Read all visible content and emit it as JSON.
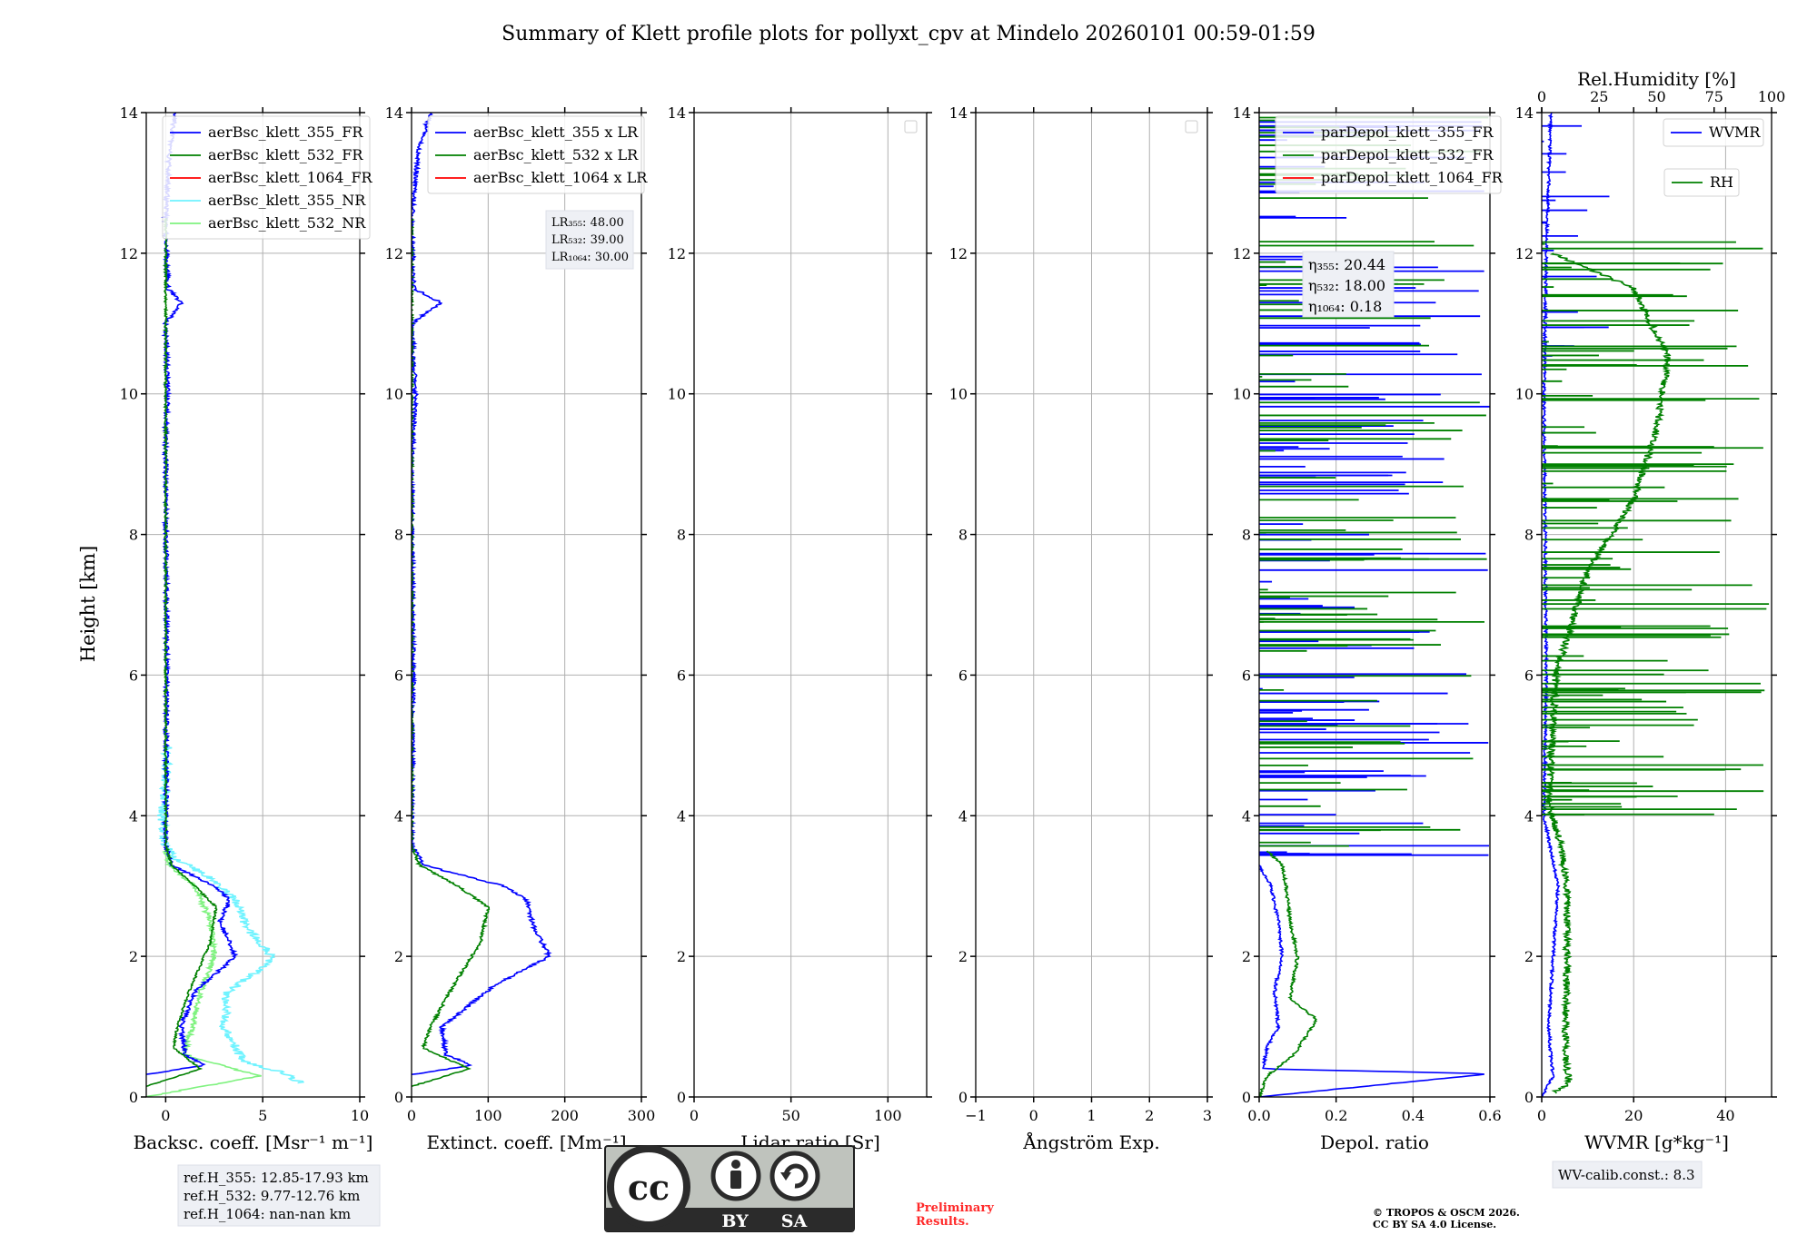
{
  "figure": {
    "title": "Summary of Klett profile plots for pollyxt_cpv at Mindelo 20260101 00:59-01:59",
    "ylabel": "Height [km]",
    "ref_box": [
      "ref.H_355: 12.85-17.93 km",
      "ref.H_532: 9.77-12.76 km",
      "ref.H_1064: nan-nan km"
    ],
    "wv_calib": "WV-calib.const.: 8.3",
    "preliminary": [
      "Preliminary",
      "Results."
    ],
    "copyright": [
      "© TROPOS & OSCM 2026.",
      "CC BY SA 4.0 License."
    ],
    "license_badge": {
      "left": "BY",
      "right": "SA",
      "logo": "cc"
    }
  },
  "colors": {
    "blue": "#0000ff",
    "green": "#008000",
    "red": "#ff0000",
    "cyan": "#6ff3ff",
    "lightgreen": "#7ff27f",
    "grid": "#b0b0b0",
    "red_text": "#ff2a2a",
    "box_bg": "#eef0f5"
  },
  "chart_data": [
    {
      "id": "bsc",
      "type": "line",
      "xlabel": "Backsc. coeff. [Msr⁻¹ m⁻¹]",
      "xlim": [
        -1,
        10
      ],
      "ylim": [
        0,
        14
      ],
      "xticks": [
        0,
        5,
        10
      ],
      "yticks": [
        0,
        2,
        4,
        6,
        8,
        10,
        12,
        14
      ],
      "legend": [
        "aerBsc_klett_355_FR",
        "aerBsc_klett_532_FR",
        "aerBsc_klett_1064_FR",
        "aerBsc_klett_355_NR",
        "aerBsc_klett_532_NR"
      ],
      "series": [
        {
          "name": "aerBsc_klett_355_NR",
          "color": "cyan",
          "noise": 0.25,
          "points": [
            [
              7.0,
              0.2
            ],
            [
              6.0,
              0.35
            ],
            [
              4.0,
              0.5
            ],
            [
              3.0,
              1.0
            ],
            [
              3.2,
              1.5
            ],
            [
              4.8,
              1.8
            ],
            [
              5.5,
              2.0
            ],
            [
              4.2,
              2.4
            ],
            [
              3.6,
              2.8
            ],
            [
              2.4,
              3.1
            ],
            [
              0.5,
              3.4
            ],
            [
              0.0,
              3.6
            ],
            [
              -0.2,
              4.0
            ],
            [
              0.0,
              4.5
            ],
            [
              0.1,
              5.0
            ]
          ]
        },
        {
          "name": "aerBsc_klett_532_NR",
          "color": "lightgreen",
          "noise": 0.15,
          "points": [
            [
              -1.0,
              0.0
            ],
            [
              4.8,
              0.3
            ],
            [
              3.5,
              0.4
            ],
            [
              1.0,
              0.6
            ],
            [
              1.8,
              1.5
            ],
            [
              2.5,
              2.0
            ],
            [
              2.3,
              2.5
            ],
            [
              1.5,
              3.0
            ],
            [
              0.2,
              3.3
            ],
            [
              0.0,
              3.5
            ]
          ]
        },
        {
          "name": "aerBsc_klett_355_FR",
          "color": "blue",
          "noise": 0.12,
          "points": [
            [
              -1.0,
              0.32
            ],
            [
              2.0,
              0.45
            ],
            [
              1.0,
              0.6
            ],
            [
              0.8,
              1.0
            ],
            [
              1.5,
              1.5
            ],
            [
              3.6,
              2.0
            ],
            [
              2.8,
              2.5
            ],
            [
              3.3,
              2.8
            ],
            [
              2.5,
              3.0
            ],
            [
              0.3,
              3.3
            ],
            [
              0.0,
              3.6
            ],
            [
              0.05,
              6.0
            ],
            [
              0.0,
              9.5
            ],
            [
              0.1,
              10.0
            ],
            [
              0.0,
              11.0
            ],
            [
              0.8,
              11.3
            ],
            [
              0.1,
              11.5
            ],
            [
              0.0,
              12.5
            ],
            [
              0.2,
              13.5
            ],
            [
              0.5,
              14.0
            ]
          ]
        },
        {
          "name": "aerBsc_klett_532_FR",
          "color": "green",
          "noise": 0.06,
          "points": [
            [
              -1.0,
              0.15
            ],
            [
              1.8,
              0.4
            ],
            [
              0.4,
              0.7
            ],
            [
              0.6,
              1.0
            ],
            [
              1.2,
              1.5
            ],
            [
              2.3,
              2.2
            ],
            [
              2.6,
              2.7
            ],
            [
              1.5,
              3.0
            ],
            [
              0.3,
              3.3
            ],
            [
              0.0,
              3.6
            ],
            [
              0.0,
              12.5
            ]
          ]
        }
      ]
    },
    {
      "id": "ext",
      "type": "line",
      "xlabel": "Extinct. coeff. [Mm⁻¹]",
      "xlim": [
        0,
        300
      ],
      "ylim": [
        0,
        14
      ],
      "xticks": [
        0,
        100,
        200,
        300
      ],
      "yticks": [
        0,
        2,
        4,
        6,
        8,
        10,
        12,
        14
      ],
      "legend": [
        "aerBsc_klett_355 x LR",
        "aerBsc_klett_532 x LR",
        "aerBsc_klett_1064 x LR"
      ],
      "lr_box": [
        "LR₃₅₅: 48.00",
        "LR₅₃₂: 39.00",
        "LR₁₀₆₄: 30.00"
      ],
      "series": [
        {
          "name": "aerBsc_klett_355 x LR",
          "color": "blue",
          "noise": 3,
          "points": [
            [
              0,
              0.32
            ],
            [
              80,
              0.45
            ],
            [
              45,
              0.6
            ],
            [
              40,
              1.0
            ],
            [
              110,
              1.6
            ],
            [
              180,
              2.0
            ],
            [
              160,
              2.4
            ],
            [
              150,
              2.8
            ],
            [
              120,
              3.0
            ],
            [
              15,
              3.3
            ],
            [
              0,
              3.6
            ],
            [
              2,
              6.0
            ],
            [
              0,
              9.0
            ],
            [
              5,
              10.0
            ],
            [
              0,
              11.0
            ],
            [
              38,
              11.3
            ],
            [
              3,
              11.5
            ],
            [
              0,
              12.5
            ],
            [
              10,
              13.5
            ],
            [
              25,
              14.0
            ]
          ]
        },
        {
          "name": "aerBsc_klett_532 x LR",
          "color": "green",
          "noise": 2,
          "points": [
            [
              0,
              0.15
            ],
            [
              75,
              0.4
            ],
            [
              15,
              0.7
            ],
            [
              25,
              1.0
            ],
            [
              50,
              1.5
            ],
            [
              90,
              2.2
            ],
            [
              100,
              2.7
            ],
            [
              60,
              3.0
            ],
            [
              10,
              3.3
            ],
            [
              0,
              3.6
            ],
            [
              0,
              12.5
            ]
          ]
        }
      ]
    },
    {
      "id": "lr",
      "type": "line",
      "xlabel": "Lidar ratio [Sr]",
      "xlim": [
        0,
        120
      ],
      "ylim": [
        0,
        14
      ],
      "xticks": [
        0,
        50,
        100
      ],
      "yticks": [
        0,
        2,
        4,
        6,
        8,
        10,
        12,
        14
      ],
      "series": []
    },
    {
      "id": "ang",
      "type": "line",
      "xlabel": "Ångström Exp.",
      "xlim": [
        -1,
        3
      ],
      "ylim": [
        0,
        14
      ],
      "xticks": [
        -1,
        0,
        1,
        2,
        3
      ],
      "yticks": [
        0,
        2,
        4,
        6,
        8,
        10,
        12,
        14
      ],
      "series": []
    },
    {
      "id": "depol",
      "type": "line",
      "xlabel": "Depol. ratio",
      "xlim": [
        0,
        0.6
      ],
      "ylim": [
        0,
        14
      ],
      "xticks": [
        0.0,
        0.2,
        0.4,
        0.6
      ],
      "yticks": [
        0,
        2,
        4,
        6,
        8,
        10,
        12,
        14
      ],
      "legend": [
        "parDepol_klett_355_FR",
        "parDepol_klett_532_FR",
        "parDepol_klett_1064_FR"
      ],
      "eta_box": [
        "η₃₅₅: 20.44",
        "η₅₃₂: 18.00",
        "η₁₀₆₄: 0.18"
      ],
      "series": [
        {
          "name": "parDepol_klett_355_FR",
          "color": "blue",
          "noise": 0.004,
          "points": [
            [
              0.0,
              0.0
            ],
            [
              0.6,
              0.33
            ],
            [
              0.01,
              0.4
            ],
            [
              0.02,
              0.7
            ],
            [
              0.05,
              1.0
            ],
            [
              0.04,
              1.5
            ],
            [
              0.06,
              2.0
            ],
            [
              0.05,
              2.5
            ],
            [
              0.03,
              3.0
            ],
            [
              0.0,
              3.3
            ]
          ],
          "spike_range": [
            3.4,
            14.0
          ],
          "spike_count": 110,
          "spike_max": 0.6
        },
        {
          "name": "parDepol_klett_532_FR",
          "color": "green",
          "noise": 0.004,
          "points": [
            [
              0.0,
              0.0
            ],
            [
              0.02,
              0.3
            ],
            [
              0.09,
              0.6
            ],
            [
              0.15,
              1.1
            ],
            [
              0.08,
              1.4
            ],
            [
              0.1,
              2.0
            ],
            [
              0.08,
              2.5
            ],
            [
              0.07,
              3.0
            ],
            [
              0.06,
              3.3
            ],
            [
              0.02,
              3.5
            ]
          ],
          "spike_range": [
            3.5,
            14.0
          ],
          "spike_count": 90,
          "spike_max": 0.6
        }
      ]
    },
    {
      "id": "wv",
      "type": "line",
      "xlabel": "WVMR [g*kg⁻¹]",
      "xlim": [
        0,
        50
      ],
      "ylim": [
        0,
        14
      ],
      "xticks": [
        0,
        20,
        40
      ],
      "yticks": [
        0,
        2,
        4,
        6,
        8,
        10,
        12,
        14
      ],
      "top_axis": {
        "label": "Rel.Humidity [%]",
        "xlim": [
          0,
          100
        ],
        "xticks": [
          0,
          25,
          50,
          75,
          100
        ]
      },
      "legend": [
        "WVMR",
        "RH"
      ],
      "series": [
        {
          "name": "WVMR",
          "color": "blue",
          "noise": 0.3,
          "points": [
            [
              0.0,
              0.0
            ],
            [
              2.5,
              0.3
            ],
            [
              2.0,
              0.6
            ],
            [
              1.5,
              1.0
            ],
            [
              2.0,
              1.5
            ],
            [
              3.0,
              2.5
            ],
            [
              3.5,
              3.0
            ],
            [
              2.0,
              3.5
            ],
            [
              0.5,
              4.0
            ],
            [
              1.0,
              6.0
            ],
            [
              0.5,
              10.0
            ],
            [
              1.0,
              12.0
            ],
            [
              2.0,
              14.0
            ]
          ],
          "spike_range": [
            10.5,
            14.0
          ],
          "spike_count": 18,
          "spike_max": 15
        },
        {
          "name": "RH",
          "color": "green",
          "axis": "top",
          "noise": 1.5,
          "points": [
            [
              5.0,
              0.05
            ],
            [
              12.0,
              0.2
            ],
            [
              10.0,
              0.6
            ],
            [
              11.0,
              1.5
            ],
            [
              11.0,
              3.0
            ],
            [
              8.0,
              3.6
            ],
            [
              3.0,
              4.2
            ],
            [
              6.0,
              6.0
            ],
            [
              20.0,
              7.5
            ],
            [
              40.0,
              8.5
            ],
            [
              50.0,
              9.5
            ],
            [
              55.0,
              10.5
            ],
            [
              40.0,
              11.5
            ],
            [
              5.0,
              12.0
            ]
          ],
          "spike_range": [
            4.0,
            12.2
          ],
          "spike_count": 110,
          "spike_max": 100
        }
      ]
    }
  ]
}
